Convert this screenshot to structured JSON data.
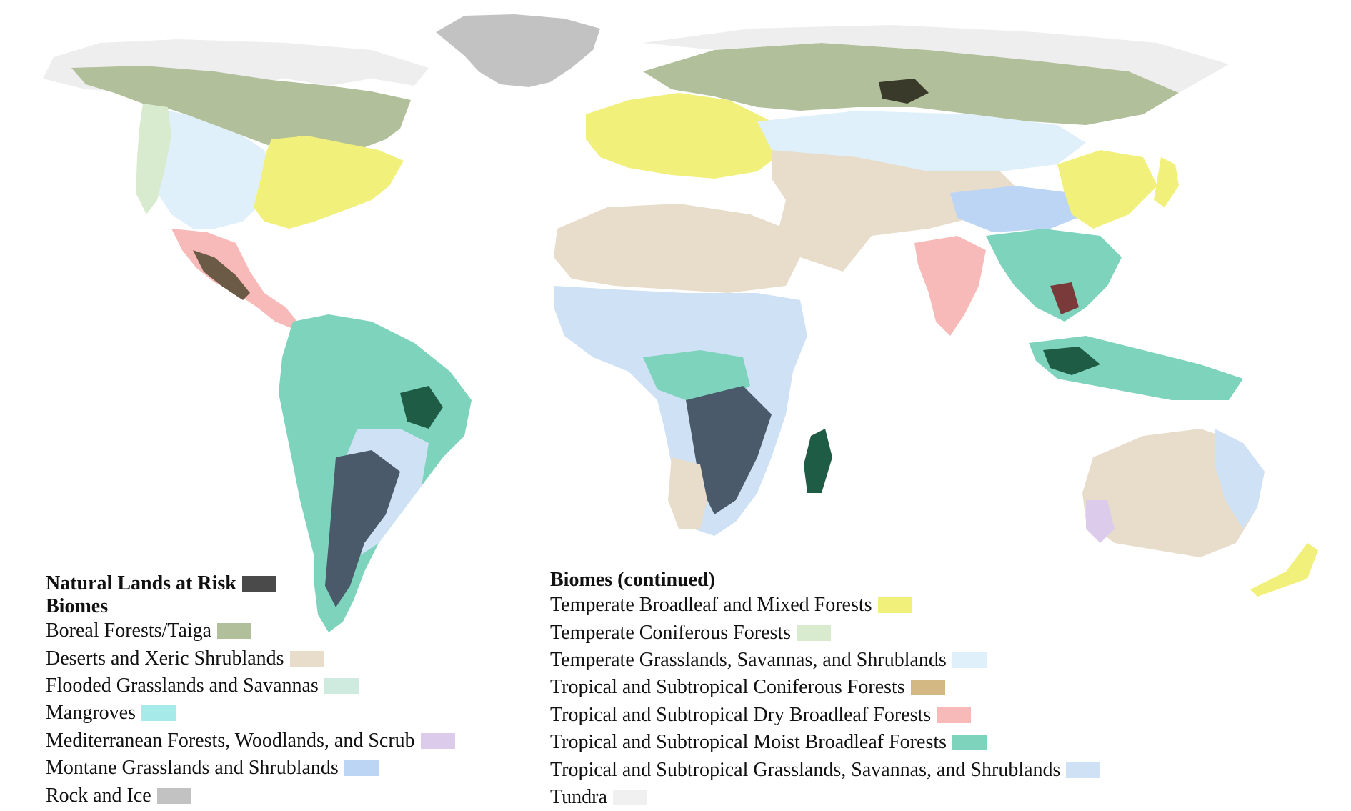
{
  "legend": {
    "risk_label": "Natural Lands at Risk",
    "risk_color": "#4a4a4a",
    "biomes_heading": "Biomes",
    "biomes_continued_heading": "Biomes (continued)",
    "biomes_left": [
      {
        "label": "Boreal Forests/Taiga",
        "color": "#b1bf9b"
      },
      {
        "label": "Deserts and Xeric Shrublands",
        "color": "#e8dccb"
      },
      {
        "label": "Flooded Grasslands and Savannas",
        "color": "#cfeadf"
      },
      {
        "label": "Mangroves",
        "color": "#a6eaea"
      },
      {
        "label": "Mediterranean Forests, Woodlands, and Scrub",
        "color": "#dccbea"
      },
      {
        "label": "Montane Grasslands and Shrublands",
        "color": "#bcd5f4"
      },
      {
        "label": "Rock and Ice",
        "color": "#c2c2c2"
      }
    ],
    "biomes_right": [
      {
        "label": "Temperate Broadleaf and Mixed Forests",
        "color": "#f1f07b"
      },
      {
        "label": "Temperate Coniferous Forests",
        "color": "#d8ebcf"
      },
      {
        "label": "Temperate Grasslands, Savannas, and Shrublands",
        "color": "#dff0fb"
      },
      {
        "label": "Tropical and Subtropical Coniferous Forests",
        "color": "#d3b883"
      },
      {
        "label": "Tropical and Subtropical Dry Broadleaf Forests",
        "color": "#f8b9b9"
      },
      {
        "label": "Tropical and Subtropical Moist Broadleaf Forests",
        "color": "#7ed3bd"
      },
      {
        "label": "Tropical and Subtropical Grasslands, Savannas, and Shrublands",
        "color": "#cfe1f4"
      },
      {
        "label": "Tundra",
        "color": "#f0f0f0"
      }
    ]
  },
  "map_colors": {
    "tundra": "#eeeeee",
    "rock_ice": "#c2c2c2",
    "boreal": "#b1bf9b",
    "temperate_broadleaf": "#f1f07b",
    "temperate_conifer": "#d8ebcf",
    "temperate_grassland": "#dff0fb",
    "desert": "#e8dccb",
    "montane": "#bcd5f4",
    "tropical_moist": "#7ed3bd",
    "tropical_grassland": "#cfe1f4",
    "tropical_dry": "#f8b9b9",
    "mediterranean": "#dccbea",
    "mangrove": "#a6eaea",
    "tropical_conifer": "#d3b883",
    "risk": "#4a4a4a",
    "risk_dark_green": "#1f5c46",
    "risk_dark_olive": "#3a3a2a",
    "risk_dark_brown": "#6b5a45",
    "risk_dark_red": "#7a3a3a",
    "risk_blue": "#4a5a6a"
  }
}
